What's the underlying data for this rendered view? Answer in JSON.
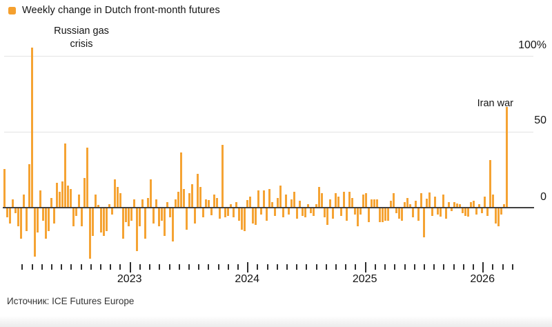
{
  "legend": {
    "label": "Weekly change in Dutch front-month futures"
  },
  "annotations": {
    "crisis": "Russian gas crisis",
    "iran": "Iran war"
  },
  "y_axis": {
    "labels": [
      "100%",
      "50",
      "0"
    ]
  },
  "x_axis": {
    "years": [
      "2023",
      "2024",
      "2025",
      "2026"
    ]
  },
  "source": "Источник: ICE Futures Europe",
  "colors": {
    "bar": "#F5A333",
    "zero_axis": "#3F3F3F",
    "gridline": "#E3E3E3",
    "legend_swatch": "#F5A02E"
  },
  "chart_data": {
    "type": "bar",
    "title": "Weekly change in Dutch front-month futures",
    "ylabel": "%",
    "unit": "%",
    "frequency": "weekly",
    "ylim": [
      -45,
      110
    ],
    "y_ticks": [
      0,
      50,
      100
    ],
    "y_tick_labels": [
      "0",
      "50",
      "100%"
    ],
    "x_year_labels": [
      "2023",
      "2024",
      "2025",
      "2026"
    ],
    "grid": true,
    "legend_position": "top-left",
    "annotations": [
      {
        "text": "Russian gas crisis",
        "points_to_value_pct": 105
      },
      {
        "text": "Iran war",
        "points_to_value_pct": 66
      }
    ],
    "values": [
      25,
      -6,
      -10,
      5,
      -3,
      -12,
      -20,
      8,
      -15,
      28,
      105,
      -32,
      -16,
      11,
      -8,
      -20,
      -15,
      6,
      -10,
      16,
      10,
      17,
      42,
      14,
      12,
      -12,
      -5,
      8,
      -12,
      19,
      39,
      -33,
      -18,
      8,
      1.5,
      -16,
      -18,
      -15,
      2,
      -4,
      18,
      13,
      9,
      -20,
      -9,
      -12,
      -8,
      5,
      -28,
      -12,
      5,
      -20,
      6,
      18,
      -10,
      5,
      -12,
      -8,
      -18,
      3,
      -6,
      -22,
      5,
      10,
      36,
      12,
      -14,
      9,
      15,
      -10,
      22,
      13,
      -6,
      5,
      4.5,
      -4.5,
      8,
      6,
      -7,
      41,
      -6,
      -5,
      2,
      -6,
      3,
      -8,
      -14,
      -15,
      4.5,
      7,
      -10,
      -11,
      11,
      -4,
      11,
      -8,
      12,
      3,
      -5,
      6,
      14,
      -6,
      8,
      -4,
      5,
      10,
      -7,
      4,
      -5,
      -6,
      2,
      -3,
      -5,
      2,
      13,
      9,
      -6,
      -11,
      5,
      -7,
      9,
      7,
      -5,
      10,
      -8,
      10,
      6,
      -4,
      -12,
      -4,
      8,
      9,
      -9,
      5,
      5,
      5,
      -9,
      -9,
      -8,
      -8,
      4,
      9,
      -3,
      -7,
      -8,
      3,
      6,
      2,
      -6,
      4,
      -8,
      9,
      -19,
      5.5,
      9.5,
      -5,
      7,
      -4,
      -5.5,
      8,
      -7,
      3,
      -2,
      3,
      2.5,
      2,
      -3,
      -5,
      -5.5,
      3,
      4,
      -4,
      2,
      -3,
      7,
      -5,
      31,
      8,
      -10,
      -12,
      -4,
      2,
      66
    ]
  }
}
